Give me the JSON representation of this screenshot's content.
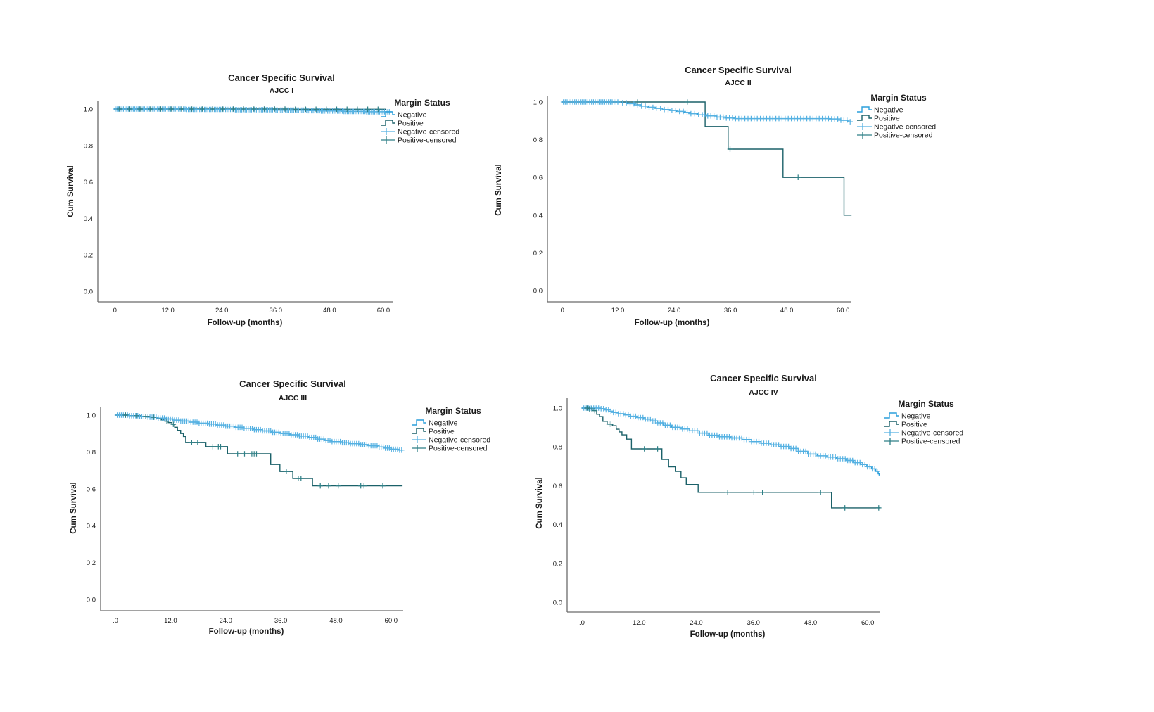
{
  "page": {
    "background": "#ffffff"
  },
  "axis": {
    "xlabel": "Follow-up (months)",
    "ylabel": "Cum Survival",
    "x_ticks": [
      ".0",
      "12.0",
      "24.0",
      "36.0",
      "48.0",
      "60.0"
    ],
    "x_tick_values": [
      0,
      12,
      24,
      36,
      48,
      60
    ],
    "y_ticks": [
      "0.0",
      "0.2",
      "0.4",
      "0.6",
      "0.8",
      "1.0"
    ],
    "y_tick_values": [
      0,
      0.2,
      0.4,
      0.6,
      0.8,
      1.0
    ],
    "xlim": [
      0,
      63
    ],
    "ylim": [
      0,
      1.0
    ],
    "grid": false
  },
  "legend": {
    "title": "Margin Status",
    "position": "right-top",
    "items": [
      {
        "label": "Negative",
        "symbol": "step-line",
        "color_key": "negative"
      },
      {
        "label": "Positive",
        "symbol": "step-line",
        "color_key": "positive"
      },
      {
        "label": "Negative-censored",
        "symbol": "plus-line",
        "color_key": "negative_censored"
      },
      {
        "label": "Positive-censored",
        "symbol": "plus-line",
        "color_key": "positive_censored"
      }
    ]
  },
  "colors": {
    "negative": "#2B9FDB",
    "positive": "#1B6169",
    "negative_censored": "#55B1E2",
    "positive_censored": "#2E7F86"
  },
  "chart_data": [
    {
      "type": "line",
      "km_style": "step",
      "title": "Cancer Specific Survival",
      "subtitle": "AJCC I",
      "series": [
        {
          "name": "Negative",
          "color_key": "negative",
          "points": [
            [
              0,
              1
            ],
            [
              16,
              0.998
            ],
            [
              27,
              0.996
            ],
            [
              36,
              0.994
            ],
            [
              43,
              0.991
            ],
            [
              46,
              0.989
            ],
            [
              51,
              0.987
            ],
            [
              56,
              0.985
            ]
          ],
          "xend": 61.5,
          "censors": [
            [
              0.3,
              61.3,
              170
            ]
          ]
        },
        {
          "name": "Positive",
          "color_key": "positive",
          "points": [
            [
              0,
              1
            ],
            [
              40,
              0.999
            ]
          ],
          "xend": 60.5,
          "censors": [
            [
              1.2,
              58.8,
              26
            ]
          ]
        }
      ]
    },
    {
      "type": "line",
      "km_style": "step",
      "title": "Cancer Specific Survival",
      "subtitle": "AJCC II",
      "series": [
        {
          "name": "Negative",
          "color_key": "negative",
          "points": [
            [
              0,
              1
            ],
            [
              12.5,
              0.996
            ],
            [
              14,
              0.991
            ],
            [
              15.5,
              0.985
            ],
            [
              17,
              0.978
            ],
            [
              18.5,
              0.972
            ],
            [
              20,
              0.966
            ],
            [
              21.5,
              0.96
            ],
            [
              23,
              0.955
            ],
            [
              24.5,
              0.95
            ],
            [
              26,
              0.945
            ],
            [
              27.5,
              0.938
            ],
            [
              29,
              0.932
            ],
            [
              31,
              0.926
            ],
            [
              33,
              0.92
            ],
            [
              35,
              0.915
            ],
            [
              37,
              0.912
            ],
            [
              57,
              0.91
            ],
            [
              59.5,
              0.903
            ],
            [
              61,
              0.895
            ]
          ],
          "xend": 61.8,
          "censors": [
            [
              0.4,
              12,
              30
            ],
            [
              13,
              30,
              22
            ],
            [
              30.5,
              61.5,
              48
            ]
          ]
        },
        {
          "name": "Positive",
          "color_key": "positive",
          "points": [
            [
              0,
              1
            ],
            [
              30.6,
              0.87
            ],
            [
              35.5,
              0.75
            ],
            [
              47.2,
              0.6
            ],
            [
              60.2,
              0.4
            ]
          ],
          "xend": 61.8,
          "censors": [
            16.2,
            26.8,
            35.9,
            50.4
          ]
        }
      ]
    },
    {
      "type": "line",
      "km_style": "step",
      "title": "Cancer Specific Survival",
      "subtitle": "AJCC III",
      "series": [
        {
          "name": "Negative",
          "color_key": "negative",
          "points": [
            [
              0,
              1
            ],
            [
              3,
              0.997
            ],
            [
              5,
              0.993
            ],
            [
              7,
              0.989
            ],
            [
              9,
              0.984
            ],
            [
              11,
              0.979
            ],
            [
              12.5,
              0.973
            ],
            [
              14,
              0.968
            ],
            [
              16,
              0.962
            ],
            [
              18,
              0.956
            ],
            [
              20,
              0.951
            ],
            [
              22,
              0.946
            ],
            [
              24,
              0.94
            ],
            [
              26,
              0.934
            ],
            [
              28,
              0.928
            ],
            [
              30,
              0.921
            ],
            [
              32,
              0.914
            ],
            [
              34,
              0.907
            ],
            [
              36,
              0.9
            ],
            [
              38,
              0.893
            ],
            [
              40,
              0.886
            ],
            [
              42,
              0.879
            ],
            [
              44,
              0.87
            ],
            [
              45.5,
              0.862
            ],
            [
              47,
              0.856
            ],
            [
              49,
              0.85
            ],
            [
              51,
              0.845
            ],
            [
              53,
              0.84
            ],
            [
              55,
              0.834
            ],
            [
              57,
              0.827
            ],
            [
              58.5,
              0.821
            ],
            [
              60,
              0.815
            ],
            [
              61.5,
              0.81
            ]
          ],
          "xend": 62.6,
          "censors": [
            [
              0.4,
              62.3,
              140
            ]
          ]
        },
        {
          "name": "Positive",
          "color_key": "positive",
          "points": [
            [
              0,
              1
            ],
            [
              3,
              0.997
            ],
            [
              5.5,
              0.993
            ],
            [
              7.5,
              0.988
            ],
            [
              9,
              0.981
            ],
            [
              10,
              0.974
            ],
            [
              10.8,
              0.967
            ],
            [
              11.5,
              0.959
            ],
            [
              12.3,
              0.95
            ],
            [
              12.9,
              0.934
            ],
            [
              13.5,
              0.917
            ],
            [
              14.2,
              0.9
            ],
            [
              14.8,
              0.884
            ],
            [
              15.3,
              0.852
            ],
            [
              19.7,
              0.829
            ],
            [
              24.4,
              0.79
            ],
            [
              33.8,
              0.732
            ],
            [
              35.8,
              0.694
            ],
            [
              38.6,
              0.656
            ],
            [
              42.9,
              0.616
            ]
          ],
          "xend": 62.5,
          "censors": [
            2.2,
            4.6,
            6.6,
            8.3,
            11.2,
            12.6,
            16.6,
            17.9,
            21.2,
            22.4,
            22.9,
            26.6,
            28.1,
            29.7,
            30.2,
            30.7,
            37.2,
            39.8,
            40.4,
            44.6,
            46.4,
            48.5,
            53.4,
            54.1,
            58.2
          ]
        }
      ]
    },
    {
      "type": "line",
      "km_style": "step",
      "title": "Cancer Specific Survival",
      "subtitle": "AJCC IV",
      "series": [
        {
          "name": "Negative",
          "color_key": "negative",
          "points": [
            [
              0,
              1
            ],
            [
              3.8,
              0.997
            ],
            [
              4.7,
              0.991
            ],
            [
              5.6,
              0.984
            ],
            [
              6.6,
              0.977
            ],
            [
              7.6,
              0.971
            ],
            [
              8.8,
              0.965
            ],
            [
              10.2,
              0.958
            ],
            [
              11.6,
              0.951
            ],
            [
              13,
              0.943
            ],
            [
              14.4,
              0.934
            ],
            [
              15.8,
              0.924
            ],
            [
              17.1,
              0.912
            ],
            [
              18.8,
              0.901
            ],
            [
              20.6,
              0.892
            ],
            [
              22.6,
              0.883
            ],
            [
              24.6,
              0.871
            ],
            [
              26.6,
              0.86
            ],
            [
              28.8,
              0.852
            ],
            [
              31.2,
              0.846
            ],
            [
              33.6,
              0.838
            ],
            [
              35.6,
              0.827
            ],
            [
              37.6,
              0.819
            ],
            [
              39.6,
              0.811
            ],
            [
              41.6,
              0.802
            ],
            [
              43.6,
              0.792
            ],
            [
              45.4,
              0.777
            ],
            [
              47.4,
              0.763
            ],
            [
              49.4,
              0.754
            ],
            [
              51.4,
              0.747
            ],
            [
              53.4,
              0.739
            ],
            [
              55.4,
              0.73
            ],
            [
              57,
              0.719
            ],
            [
              58.5,
              0.709
            ],
            [
              59.8,
              0.698
            ],
            [
              60.8,
              0.687
            ],
            [
              61.7,
              0.674
            ],
            [
              62.2,
              0.661
            ],
            [
              62.4,
              0.655
            ]
          ],
          "xend": 62.5,
          "censors": [
            [
              0.4,
              62,
              120
            ]
          ]
        },
        {
          "name": "Positive",
          "color_key": "positive",
          "points": [
            [
              0,
              1
            ],
            [
              1.4,
              0.996
            ],
            [
              2.4,
              0.987
            ],
            [
              3.1,
              0.968
            ],
            [
              3.7,
              0.956
            ],
            [
              4.4,
              0.932
            ],
            [
              5.3,
              0.917
            ],
            [
              6.4,
              0.909
            ],
            [
              7.2,
              0.891
            ],
            [
              7.8,
              0.877
            ],
            [
              8.4,
              0.862
            ],
            [
              9.4,
              0.84
            ],
            [
              10.4,
              0.79
            ],
            [
              16.8,
              0.735
            ],
            [
              18.2,
              0.697
            ],
            [
              19.6,
              0.674
            ],
            [
              20.8,
              0.641
            ],
            [
              21.9,
              0.606
            ],
            [
              24.4,
              0.566
            ],
            [
              52.4,
              0.486
            ]
          ],
          "xend": 62.5,
          "censors": [
            1.1,
            1.6,
            2.1,
            2.7,
            5.7,
            6.1,
            13.1,
            15.9,
            30.6,
            36.1,
            37.9,
            50.1,
            55.2,
            62.3
          ]
        }
      ]
    }
  ]
}
